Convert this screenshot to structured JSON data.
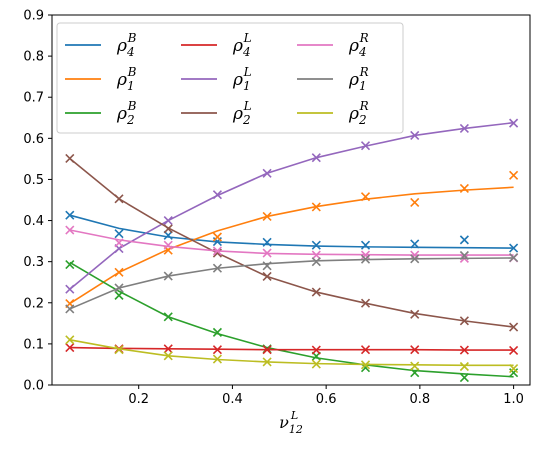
{
  "chart_data": {
    "type": "line",
    "xlabel": "ν₁₂ᴸ",
    "xlabel_main": "ν",
    "xlabel_sub": "12",
    "xlabel_sup": "L",
    "ylabel": "",
    "xlim": [
      0.015,
      1.035
    ],
    "ylim": [
      0.0,
      0.9
    ],
    "xticks": [
      0.2,
      0.4,
      0.6,
      0.8,
      1.0
    ],
    "xtick_labels": [
      "0.2",
      "0.4",
      "0.6",
      "0.8",
      "1.0"
    ],
    "yticks": [
      0.0,
      0.1,
      0.2,
      0.3,
      0.4,
      0.5,
      0.6,
      0.7,
      0.8,
      0.9
    ],
    "ytick_labels": [
      "0.0",
      "0.1",
      "0.2",
      "0.3",
      "0.4",
      "0.5",
      "0.6",
      "0.7",
      "0.8",
      "0.9"
    ],
    "grid": false,
    "legend_position": "top-left",
    "legend_columns": 3,
    "marker": "x",
    "x": [
      0.053,
      0.158,
      0.263,
      0.368,
      0.474,
      0.579,
      0.684,
      0.789,
      0.895,
      1.0
    ],
    "series": [
      {
        "name": "ρ4B",
        "label_main": "ρ",
        "label_sub": "4",
        "label_sup": "B",
        "color": "#1f77b4",
        "line": [
          0.413,
          0.381,
          0.36,
          0.348,
          0.342,
          0.338,
          0.336,
          0.335,
          0.334,
          0.333
        ],
        "markers": [
          0.413,
          0.368,
          0.364,
          0.349,
          0.347,
          0.34,
          0.34,
          0.343,
          0.353,
          0.333
        ]
      },
      {
        "name": "ρ1B",
        "label_main": "ρ",
        "label_sub": "1",
        "label_sup": "B",
        "color": "#ff7f0e",
        "line": [
          0.198,
          0.274,
          0.33,
          0.375,
          0.41,
          0.434,
          0.452,
          0.465,
          0.474,
          0.481
        ],
        "markers": [
          0.198,
          0.274,
          0.328,
          0.36,
          0.41,
          0.433,
          0.458,
          0.444,
          0.478,
          0.51
        ]
      },
      {
        "name": "ρ2B",
        "label_main": "ρ",
        "label_sub": "2",
        "label_sup": "B",
        "color": "#2ca02c",
        "line": [
          0.298,
          0.228,
          0.166,
          0.125,
          0.091,
          0.066,
          0.049,
          0.035,
          0.027,
          0.02
        ],
        "markers": [
          0.293,
          0.218,
          0.166,
          0.128,
          0.088,
          0.07,
          0.042,
          0.03,
          0.018,
          0.03
        ]
      },
      {
        "name": "ρ4L",
        "label_main": "ρ",
        "label_sub": "4",
        "label_sup": "L",
        "color": "#d62728",
        "line": [
          0.091,
          0.089,
          0.088,
          0.087,
          0.086,
          0.086,
          0.086,
          0.086,
          0.085,
          0.085
        ],
        "markers": [
          0.091,
          0.088,
          0.088,
          0.086,
          0.086,
          0.085,
          0.086,
          0.086,
          0.085,
          0.084
        ]
      },
      {
        "name": "ρ1L",
        "label_main": "ρ",
        "label_sub": "1",
        "label_sup": "L",
        "color": "#9467bd",
        "line": [
          0.233,
          0.332,
          0.4,
          0.461,
          0.515,
          0.553,
          0.581,
          0.607,
          0.624,
          0.638
        ],
        "markers": [
          0.233,
          0.332,
          0.4,
          0.463,
          0.515,
          0.553,
          0.582,
          0.607,
          0.624,
          0.637
        ]
      },
      {
        "name": "ρ2L",
        "label_main": "ρ",
        "label_sub": "2",
        "label_sup": "L",
        "color": "#8c564b",
        "line": [
          0.551,
          0.453,
          0.382,
          0.321,
          0.264,
          0.226,
          0.199,
          0.174,
          0.156,
          0.141
        ],
        "markers": [
          0.551,
          0.453,
          0.38,
          0.321,
          0.264,
          0.226,
          0.199,
          0.172,
          0.156,
          0.141
        ]
      },
      {
        "name": "ρ4R",
        "label_main": "ρ",
        "label_sub": "4",
        "label_sup": "R",
        "color": "#e377c2",
        "line": [
          0.377,
          0.353,
          0.337,
          0.326,
          0.32,
          0.318,
          0.317,
          0.316,
          0.316,
          0.316
        ],
        "markers": [
          0.377,
          0.346,
          0.34,
          0.326,
          0.321,
          0.316,
          0.316,
          0.316,
          0.308,
          0.309
        ]
      },
      {
        "name": "ρ1R",
        "label_main": "ρ",
        "label_sub": "1",
        "label_sup": "R",
        "color": "#7f7f7f",
        "line": [
          0.185,
          0.236,
          0.265,
          0.284,
          0.295,
          0.302,
          0.305,
          0.307,
          0.308,
          0.309
        ],
        "markers": [
          0.185,
          0.236,
          0.265,
          0.284,
          0.29,
          0.3,
          0.306,
          0.307,
          0.315,
          0.31
        ]
      },
      {
        "name": "ρ2R",
        "label_main": "ρ",
        "label_sub": "2",
        "label_sup": "R",
        "color": "#bcbd22",
        "line": [
          0.11,
          0.088,
          0.071,
          0.062,
          0.056,
          0.052,
          0.05,
          0.049,
          0.048,
          0.048
        ],
        "markers": [
          0.11,
          0.086,
          0.071,
          0.063,
          0.056,
          0.051,
          0.049,
          0.046,
          0.045,
          0.04
        ]
      }
    ]
  }
}
